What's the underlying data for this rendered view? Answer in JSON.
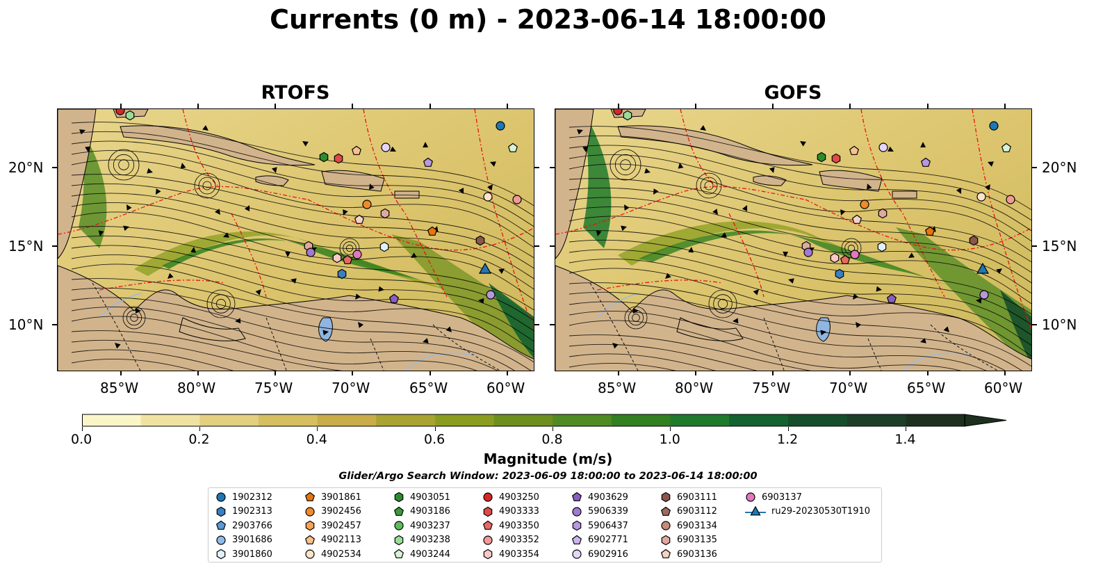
{
  "title": "Currents (0 m) - 2023-06-14 18:00:00",
  "panels": [
    {
      "title": "RTOFS"
    },
    {
      "title": "GOFS"
    }
  ],
  "x_ticks": [
    "85°W",
    "80°W",
    "75°W",
    "70°W",
    "65°W",
    "60°W"
  ],
  "y_ticks": [
    "20°N",
    "15°N",
    "10°N"
  ],
  "colorbar": {
    "label": "Magnitude (m/s)",
    "ticks": [
      "0.0",
      "0.2",
      "0.4",
      "0.6",
      "0.8",
      "1.0",
      "1.2",
      "1.4"
    ],
    "min": 0.0,
    "max": 1.5,
    "extend": "max",
    "colors": [
      "#fbf6c8",
      "#f0e3a2",
      "#e3cf80",
      "#d6bf60",
      "#c8ad48",
      "#a9a332",
      "#8a9d1f",
      "#6c8f1d",
      "#4f8a22",
      "#32801f",
      "#1f7a2c",
      "#136230",
      "#164e2b",
      "#1d3f27",
      "#1d3020"
    ]
  },
  "search_window": "Glider/Argo Search Window: 2023-06-09 18:00:00 to 2023-06-14 18:00:00",
  "legend": [
    {
      "label": "1902312",
      "marker": "circle",
      "color": "#1f77b4"
    },
    {
      "label": "1902313",
      "marker": "hexagon",
      "color": "#3a7fc0"
    },
    {
      "label": "2903766",
      "marker": "pentagon",
      "color": "#5a9bd5"
    },
    {
      "label": "3901686",
      "marker": "circle",
      "color": "#8fbbe6"
    },
    {
      "label": "3901860",
      "marker": "hexagon",
      "color": "#e0f0fa"
    },
    {
      "label": "3901861",
      "marker": "pentagon",
      "color": "#e6750e"
    },
    {
      "label": "3902456",
      "marker": "circle",
      "color": "#f08a2a"
    },
    {
      "label": "3902457",
      "marker": "hexagon",
      "color": "#f7a155"
    },
    {
      "label": "4902113",
      "marker": "pentagon",
      "color": "#f9c08d"
    },
    {
      "label": "4902534",
      "marker": "circle",
      "color": "#fce3c9"
    },
    {
      "label": "4903051",
      "marker": "hexagon",
      "color": "#2c8c2c"
    },
    {
      "label": "4903186",
      "marker": "pentagon",
      "color": "#3a9a3a"
    },
    {
      "label": "4903237",
      "marker": "circle",
      "color": "#5dbb5d"
    },
    {
      "label": "4903238",
      "marker": "hexagon",
      "color": "#98dc98"
    },
    {
      "label": "4903244",
      "marker": "pentagon",
      "color": "#d5f3d5"
    },
    {
      "label": "4903250",
      "marker": "circle",
      "color": "#d62728"
    },
    {
      "label": "4903333",
      "marker": "hexagon",
      "color": "#de4a48"
    },
    {
      "label": "4903350",
      "marker": "pentagon",
      "color": "#e86865"
    },
    {
      "label": "4903352",
      "marker": "circle",
      "color": "#f29a98"
    },
    {
      "label": "4903354",
      "marker": "hexagon",
      "color": "#fac8c6"
    },
    {
      "label": "4903629",
      "marker": "pentagon",
      "color": "#8a5ec0"
    },
    {
      "label": "5906339",
      "marker": "circle",
      "color": "#a07ad0"
    },
    {
      "label": "5906437",
      "marker": "hexagon",
      "color": "#b797de"
    },
    {
      "label": "6902771",
      "marker": "pentagon",
      "color": "#cdb6ee"
    },
    {
      "label": "6902916",
      "marker": "circle",
      "color": "#e5d6f8"
    },
    {
      "label": "6903111",
      "marker": "hexagon",
      "color": "#8c564b"
    },
    {
      "label": "6903112",
      "marker": "pentagon",
      "color": "#9d6a5e"
    },
    {
      "label": "6903134",
      "marker": "circle",
      "color": "#c48a7a"
    },
    {
      "label": "6903135",
      "marker": "hexagon",
      "color": "#e0a9a0"
    },
    {
      "label": "6903136",
      "marker": "pentagon",
      "color": "#f6d2c5"
    },
    {
      "label": "6903137",
      "marker": "circle",
      "color": "#e377c2"
    },
    {
      "label": "ru29-20230530T1910",
      "marker": "triangle-line",
      "color": "#1f77b4"
    }
  ]
}
